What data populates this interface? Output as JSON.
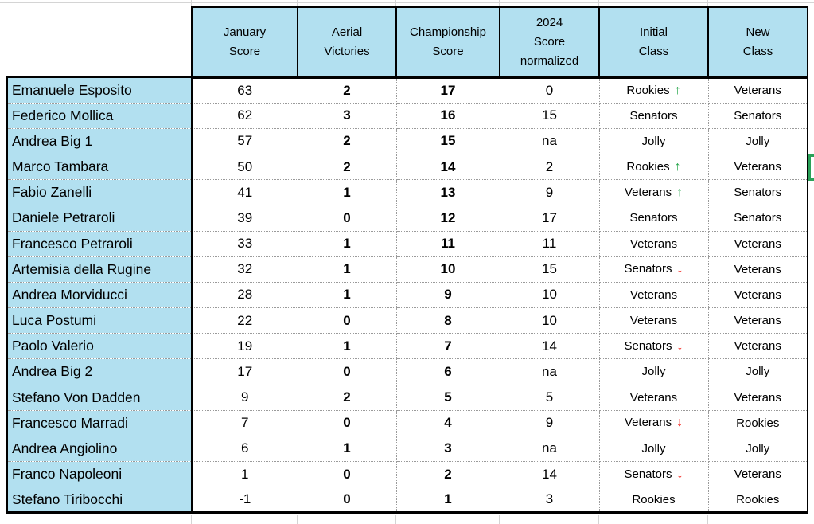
{
  "colors": {
    "header_bg": "#b2e0f0",
    "arrow_up": "#22a447",
    "arrow_down": "#f2140d",
    "selection_green": "#2aa158"
  },
  "icons": {
    "trend_up": "↑",
    "trend_down": "↓"
  },
  "table": {
    "headers": {
      "name": "",
      "january_score": "January\nScore",
      "aerial_victories": "Aerial\nVictories",
      "championship_score": "Championship\nScore",
      "score_2024_normalized": "2024\nScore\nnormalized",
      "initial_class": "Initial\nClass",
      "new_class": "New\nClass"
    },
    "rows": [
      {
        "name": "Emanuele Esposito",
        "january": "63",
        "aerial": "2",
        "championship": "17",
        "normalized": "0",
        "initial_class": "Rookies",
        "trend": "up",
        "new_class": "Veterans"
      },
      {
        "name": "Federico Mollica",
        "january": "62",
        "aerial": "3",
        "championship": "16",
        "normalized": "15",
        "initial_class": "Senators",
        "trend": "",
        "new_class": "Senators"
      },
      {
        "name": "Andrea Big 1",
        "january": "57",
        "aerial": "2",
        "championship": "15",
        "normalized": "na",
        "initial_class": "Jolly",
        "trend": "",
        "new_class": "Jolly"
      },
      {
        "name": "Marco Tambara",
        "january": "50",
        "aerial": "2",
        "championship": "14",
        "normalized": "2",
        "initial_class": "Rookies",
        "trend": "up",
        "new_class": "Veterans"
      },
      {
        "name": "Fabio Zanelli",
        "january": "41",
        "aerial": "1",
        "championship": "13",
        "normalized": "9",
        "initial_class": "Veterans",
        "trend": "up",
        "new_class": "Senators"
      },
      {
        "name": "Daniele Petraroli",
        "january": "39",
        "aerial": "0",
        "championship": "12",
        "normalized": "17",
        "initial_class": "Senators",
        "trend": "",
        "new_class": "Senators"
      },
      {
        "name": "Francesco Petraroli",
        "january": "33",
        "aerial": "1",
        "championship": "11",
        "normalized": "11",
        "initial_class": "Veterans",
        "trend": "",
        "new_class": "Veterans"
      },
      {
        "name": "Artemisia della Rugine",
        "january": "32",
        "aerial": "1",
        "championship": "10",
        "normalized": "15",
        "initial_class": "Senators",
        "trend": "down",
        "new_class": "Veterans"
      },
      {
        "name": "Andrea Morviducci",
        "january": "28",
        "aerial": "1",
        "championship": "9",
        "normalized": "10",
        "initial_class": "Veterans",
        "trend": "",
        "new_class": "Veterans"
      },
      {
        "name": "Luca Postumi",
        "january": "22",
        "aerial": "0",
        "championship": "8",
        "normalized": "10",
        "initial_class": "Veterans",
        "trend": "",
        "new_class": "Veterans"
      },
      {
        "name": "Paolo Valerio",
        "january": "19",
        "aerial": "1",
        "championship": "7",
        "normalized": "14",
        "initial_class": "Senators",
        "trend": "down",
        "new_class": "Veterans"
      },
      {
        "name": "Andrea Big 2",
        "january": "17",
        "aerial": "0",
        "championship": "6",
        "normalized": "na",
        "initial_class": "Jolly",
        "trend": "",
        "new_class": "Jolly"
      },
      {
        "name": "Stefano Von Dadden",
        "january": "9",
        "aerial": "2",
        "championship": "5",
        "normalized": "5",
        "initial_class": "Veterans",
        "trend": "",
        "new_class": "Veterans"
      },
      {
        "name": "Francesco Marradi",
        "january": "7",
        "aerial": "0",
        "championship": "4",
        "normalized": "9",
        "initial_class": "Veterans",
        "trend": "down",
        "new_class": "Rookies"
      },
      {
        "name": "Andrea Angiolino",
        "january": "6",
        "aerial": "1",
        "championship": "3",
        "normalized": "na",
        "initial_class": "Jolly",
        "trend": "",
        "new_class": "Jolly"
      },
      {
        "name": "Franco Napoleoni",
        "january": "1",
        "aerial": "0",
        "championship": "2",
        "normalized": "14",
        "initial_class": "Senators",
        "trend": "down",
        "new_class": "Veterans"
      },
      {
        "name": "Stefano Tiribocchi",
        "january": "-1",
        "aerial": "0",
        "championship": "1",
        "normalized": "3",
        "initial_class": "Rookies",
        "trend": "",
        "new_class": "Rookies"
      }
    ]
  }
}
